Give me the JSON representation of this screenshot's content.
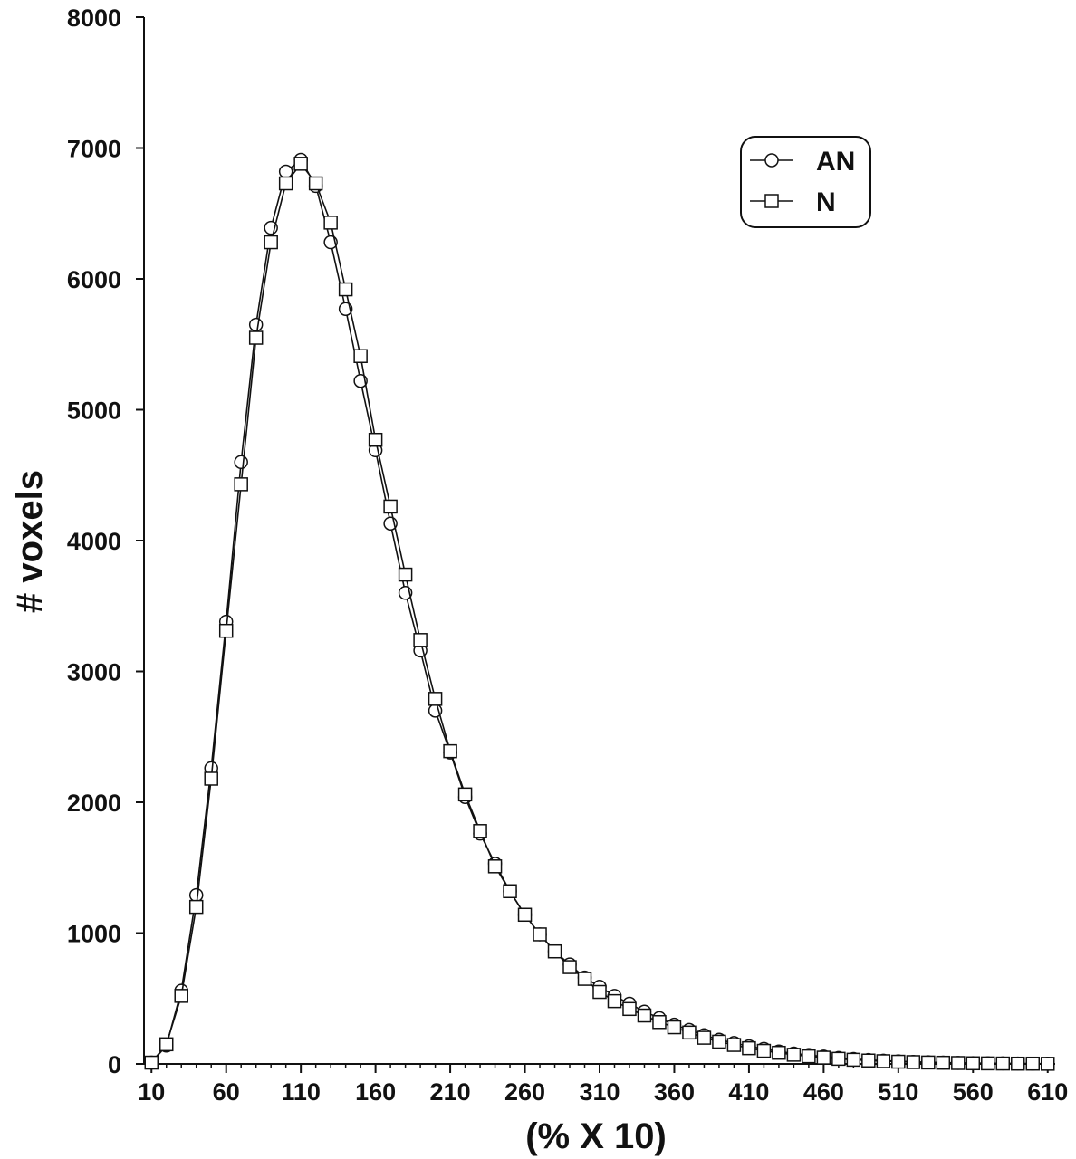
{
  "chart_data": {
    "type": "line",
    "title": "",
    "xlabel": "(% X 10)",
    "ylabel": "# voxels",
    "xlim": [
      5,
      615
    ],
    "ylim": [
      0,
      8000
    ],
    "x_ticks": [
      10,
      60,
      110,
      160,
      210,
      260,
      310,
      360,
      410,
      460,
      510,
      560,
      610
    ],
    "x_tick_labels": [
      "10",
      "60",
      "110",
      "160",
      "210",
      "260",
      "310",
      "360",
      "410",
      "460",
      "510",
      "560",
      "610"
    ],
    "y_ticks": [
      0,
      1000,
      2000,
      3000,
      4000,
      5000,
      6000,
      7000,
      8000
    ],
    "y_tick_labels": [
      "0",
      "1000",
      "2000",
      "3000",
      "4000",
      "5000",
      "6000",
      "7000",
      "8000"
    ],
    "grid": false,
    "legend_position": "top-right",
    "x": [
      10,
      20,
      30,
      40,
      50,
      60,
      70,
      80,
      90,
      100,
      110,
      120,
      130,
      140,
      150,
      160,
      170,
      180,
      190,
      200,
      210,
      220,
      230,
      240,
      250,
      260,
      270,
      280,
      290,
      300,
      310,
      320,
      330,
      340,
      350,
      360,
      370,
      380,
      390,
      400,
      410,
      420,
      430,
      440,
      450,
      460,
      470,
      480,
      490,
      500,
      510,
      520,
      530,
      540,
      550,
      560,
      570,
      580,
      590,
      600,
      610
    ],
    "series": [
      {
        "name": "AN",
        "marker": "circle",
        "values": [
          10,
          140,
          560,
          1290,
          2260,
          3380,
          4600,
          5650,
          6390,
          6820,
          6910,
          6710,
          6280,
          5770,
          5220,
          4690,
          4130,
          3600,
          3160,
          2700,
          2380,
          2040,
          1760,
          1530,
          1320,
          1140,
          990,
          860,
          760,
          660,
          590,
          520,
          460,
          400,
          350,
          300,
          260,
          220,
          185,
          160,
          135,
          115,
          95,
          80,
          68,
          56,
          46,
          38,
          30,
          25,
          20,
          16,
          13,
          10,
          8,
          6,
          5,
          4,
          3,
          2,
          2
        ]
      },
      {
        "name": "N",
        "marker": "square",
        "values": [
          10,
          150,
          520,
          1200,
          2180,
          3310,
          4430,
          5550,
          6280,
          6730,
          6880,
          6730,
          6430,
          5920,
          5410,
          4770,
          4260,
          3740,
          3240,
          2790,
          2390,
          2060,
          1780,
          1510,
          1320,
          1140,
          990,
          860,
          740,
          650,
          550,
          480,
          420,
          370,
          320,
          280,
          240,
          200,
          170,
          145,
          120,
          100,
          85,
          70,
          58,
          48,
          39,
          32,
          26,
          21,
          17,
          14,
          11,
          9,
          7,
          5,
          4,
          3,
          2,
          2,
          1
        ]
      }
    ]
  }
}
